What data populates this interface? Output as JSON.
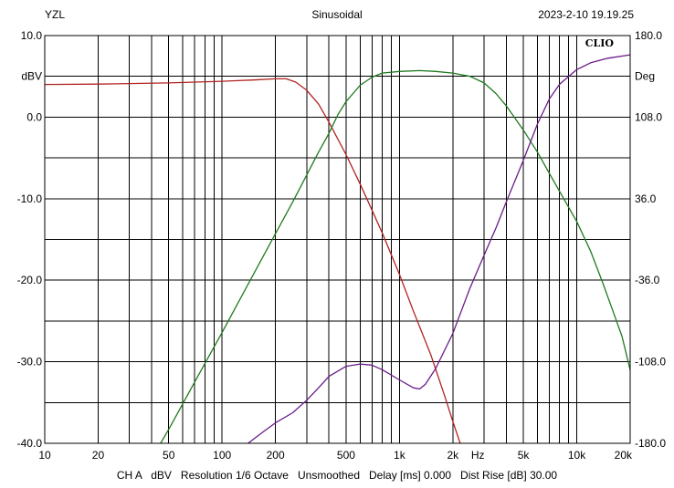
{
  "header": {
    "left": "YZL",
    "center": "Sinusoidal",
    "right": "2023-2-10 19.19.25"
  },
  "footer": "CH A   dBV   Resolution 1/6 Octave   Unsmoothed   Delay [ms] 0.000   Dist Rise [dB] 30.00",
  "chart_data": {
    "type": "line",
    "title": "Sinusoidal",
    "logo": "CLIO",
    "x_scale": "log",
    "xlim": [
      10,
      20000
    ],
    "ylim_left": [
      -40,
      10
    ],
    "ylim_right": [
      -180,
      180
    ],
    "ylabel_left": "dBV",
    "ylabel_right": "Deg",
    "xlabel": "Hz",
    "grid": true,
    "x_ticks": [
      {
        "v": 10,
        "t": "10"
      },
      {
        "v": 20,
        "t": "20"
      },
      {
        "v": 50,
        "t": "50"
      },
      {
        "v": 100,
        "t": "100"
      },
      {
        "v": 200,
        "t": "200"
      },
      {
        "v": 500,
        "t": "500"
      },
      {
        "v": 1000,
        "t": "1k"
      },
      {
        "v": 2000,
        "t": "2k"
      },
      {
        "v": 5000,
        "t": "5k"
      },
      {
        "v": 10000,
        "t": "10k"
      },
      {
        "v": 20000,
        "t": "20k"
      }
    ],
    "y_ticks_left": [
      {
        "v": 10,
        "t": "10.0"
      },
      {
        "v": 5,
        "t": "dBV"
      },
      {
        "v": 0,
        "t": "0.0"
      },
      {
        "v": -10,
        "t": "-10.0"
      },
      {
        "v": -20,
        "t": "-20.0"
      },
      {
        "v": -30,
        "t": "-30.0"
      },
      {
        "v": -40,
        "t": "-40.0"
      }
    ],
    "y_ticks_right": [
      {
        "v": 180,
        "t": "180.0"
      },
      {
        "v": 144,
        "t": "Deg"
      },
      {
        "v": 108,
        "t": "108.0"
      },
      {
        "v": 36,
        "t": "36.0"
      },
      {
        "v": -36,
        "t": "-36.0"
      },
      {
        "v": -108,
        "t": "-108.0"
      },
      {
        "v": -180,
        "t": "-180.0"
      }
    ],
    "colors": {
      "red": "#b22222",
      "green": "#1e7a1e",
      "purple": "#6a1b8a",
      "grid": "#000000"
    },
    "series": [
      {
        "color": "#b22222",
        "axis": "left",
        "points": [
          [
            10,
            4.0
          ],
          [
            20,
            4.05
          ],
          [
            50,
            4.2
          ],
          [
            100,
            4.4
          ],
          [
            150,
            4.55
          ],
          [
            200,
            4.7
          ],
          [
            230,
            4.7
          ],
          [
            260,
            4.3
          ],
          [
            300,
            3.3
          ],
          [
            350,
            1.6
          ],
          [
            400,
            -0.6
          ],
          [
            500,
            -4.6
          ],
          [
            600,
            -8.2
          ],
          [
            700,
            -11.4
          ],
          [
            800,
            -14.2
          ],
          [
            1000,
            -19.3
          ],
          [
            1200,
            -23.8
          ],
          [
            1500,
            -29.1
          ],
          [
            1800,
            -34.2
          ],
          [
            2000,
            -37.3
          ],
          [
            2200,
            -40
          ]
        ]
      },
      {
        "color": "#1e7a1e",
        "axis": "left",
        "points": [
          [
            45,
            -40
          ],
          [
            50,
            -38.3
          ],
          [
            70,
            -32.5
          ],
          [
            100,
            -26.4
          ],
          [
            150,
            -19.3
          ],
          [
            200,
            -14.3
          ],
          [
            250,
            -10.4
          ],
          [
            300,
            -7.1
          ],
          [
            350,
            -4.3
          ],
          [
            400,
            -2.0
          ],
          [
            450,
            0.3
          ],
          [
            500,
            1.9
          ],
          [
            600,
            3.9
          ],
          [
            700,
            4.9
          ],
          [
            800,
            5.4
          ],
          [
            1000,
            5.6
          ],
          [
            1300,
            5.7
          ],
          [
            1600,
            5.6
          ],
          [
            2000,
            5.4
          ],
          [
            2500,
            5.0
          ],
          [
            3000,
            4.2
          ],
          [
            3500,
            2.9
          ],
          [
            4000,
            1.4
          ],
          [
            5000,
            -1.6
          ],
          [
            6000,
            -4.3
          ],
          [
            7000,
            -6.9
          ],
          [
            8000,
            -9.1
          ],
          [
            10000,
            -12.8
          ],
          [
            12000,
            -16.5
          ],
          [
            14000,
            -20.3
          ],
          [
            16000,
            -23.8
          ],
          [
            18000,
            -26.9
          ],
          [
            20000,
            -31.0
          ],
          [
            22000,
            -31.6
          ]
        ]
      },
      {
        "color": "#6a1b8a",
        "axis": "right",
        "points": [
          [
            140,
            -180
          ],
          [
            170,
            -170
          ],
          [
            200,
            -162
          ],
          [
            250,
            -153
          ],
          [
            300,
            -142
          ],
          [
            350,
            -131
          ],
          [
            400,
            -121
          ],
          [
            500,
            -112
          ],
          [
            600,
            -110
          ],
          [
            700,
            -111
          ],
          [
            800,
            -115
          ],
          [
            1000,
            -124
          ],
          [
            1200,
            -131
          ],
          [
            1300,
            -132
          ],
          [
            1400,
            -128
          ],
          [
            1600,
            -114
          ],
          [
            2000,
            -83
          ],
          [
            2500,
            -43
          ],
          [
            3000,
            -14
          ],
          [
            3500,
            10
          ],
          [
            4000,
            33
          ],
          [
            5000,
            70
          ],
          [
            6000,
            102
          ],
          [
            7000,
            124
          ],
          [
            8000,
            137
          ],
          [
            10000,
            150
          ],
          [
            12000,
            156
          ],
          [
            15000,
            160
          ],
          [
            20000,
            163
          ],
          [
            22000,
            164
          ]
        ]
      }
    ]
  }
}
